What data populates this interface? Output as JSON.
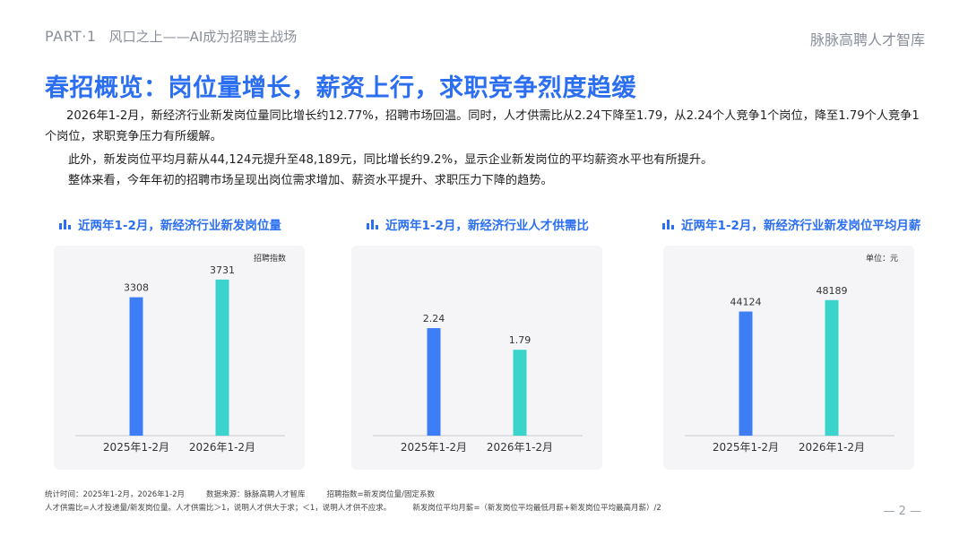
{
  "header": {
    "part": "PART·1",
    "section": "风口之上——AI成为招聘主战场",
    "brand": "脉脉高聘人才智库"
  },
  "title": "春招概览：岗位量增长，薪资上行，求职竞争烈度趋缓",
  "paragraphs": [
    "2026年1-2月，新经济行业新发岗位量同比增长约12.77%，招聘市场回温。同时，人才供需比从2.24下降至1.79，从2.24个人竞争1个岗位，降至1.79个人竞争1个岗位，求职竞争压力有所缓解。",
    "此外，新发岗位平均月薪从44,124元提升至48,189元，同比增长约9.2%，显示企业新发岗位的平均薪资水平也有所提升。",
    "整体来看，今年年初的招聘市场呈现出岗位需求增加、薪资水平提升、求职压力下降的趋势。"
  ],
  "colors": {
    "accent": "#2b6ff0",
    "bar_2025": "#3d7ef6",
    "bar_2026": "#3bd4cc",
    "panel_bg": "#f5f5f7"
  },
  "chart_icon": "bar-chart-icon",
  "chart_data": [
    {
      "type": "bar",
      "title": "近两年1-2月，新经济行业新发岗位量",
      "unit_label": "招聘指数",
      "categories": [
        "2025年1-2月",
        "2026年1-2月"
      ],
      "values": [
        3308,
        3731
      ],
      "value_labels": [
        "3308",
        "3731"
      ],
      "ylim": [
        0,
        3900
      ]
    },
    {
      "type": "bar",
      "title": "近两年1-2月，新经济行业人才供需比",
      "unit_label": "",
      "categories": [
        "2025年1-2月",
        "2026年1-2月"
      ],
      "values": [
        2.24,
        1.79
      ],
      "value_labels": [
        "2.24",
        "1.79"
      ],
      "ylim": [
        0,
        3.4
      ]
    },
    {
      "type": "bar",
      "title": "近两年1-2月，新经济行业新发岗位平均月薪",
      "unit_label": "单位：元",
      "categories": [
        "2025年1-2月",
        "2026年1-2月"
      ],
      "values": [
        44124,
        48189
      ],
      "value_labels": [
        "44124",
        "48189"
      ],
      "ylim": [
        0,
        58000
      ]
    }
  ],
  "footnotes": {
    "line1": [
      "统计时间：2025年1-2月，2026年1-2月",
      "数据来源：脉脉高聘人才智库",
      "招聘指数=新发岗位量/固定系数"
    ],
    "line2": [
      "人才供需比=人才投递量/新发岗位量。人才供需比＞1，说明人才供大于求；＜1，说明人才供不应求。",
      "新发岗位平均月薪=（新发岗位平均最低月薪+新发岗位平均最高月薪）/2"
    ]
  },
  "page_number": "— 2 —"
}
